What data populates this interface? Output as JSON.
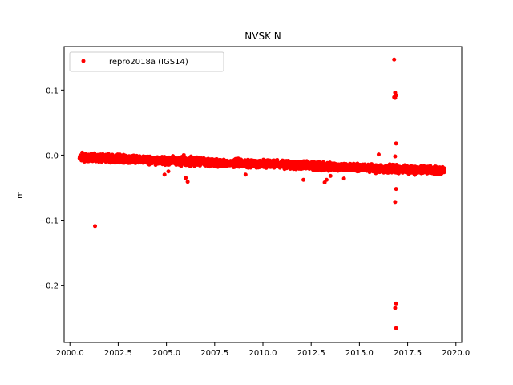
{
  "chart_data": {
    "type": "scatter",
    "title": "NVSK N",
    "xlabel": "",
    "ylabel": "m",
    "xlim": [
      1999.7,
      2020.3
    ],
    "ylim": [
      -0.288,
      0.167
    ],
    "xticks": [
      2000.0,
      2002.5,
      2005.0,
      2007.5,
      2010.0,
      2012.5,
      2015.0,
      2017.5,
      2020.0
    ],
    "xtick_labels": [
      "2000.0",
      "2002.5",
      "2005.0",
      "2007.5",
      "2010.0",
      "2012.5",
      "2015.0",
      "2017.5",
      "2020.0"
    ],
    "yticks": [
      0.1,
      0.0,
      -0.1,
      -0.2
    ],
    "ytick_labels": [
      "0.1",
      "0.0",
      "−0.1",
      "−0.2"
    ],
    "grid": false,
    "legend_position": "upper-left",
    "series": [
      {
        "name": "repro2018a (IGS14)",
        "color": "#ff0000",
        "marker": "circle",
        "trend": {
          "x": [
            2000.5,
            2003.0,
            2005.5,
            2008.0,
            2010.5,
            2013.0,
            2015.5,
            2017.5,
            2019.4
          ],
          "y": [
            -0.003,
            -0.006,
            -0.009,
            -0.012,
            -0.014,
            -0.017,
            -0.02,
            -0.022,
            -0.024
          ]
        },
        "x": [
          2001.3,
          2004.9,
          2005.1,
          2005.9,
          2006.0,
          2006.1,
          2009.1,
          2012.1,
          2013.2,
          2013.3,
          2013.5,
          2014.2,
          2016.0,
          2016.8,
          2016.85,
          2016.9,
          2016.8,
          2016.85,
          2016.9,
          2016.85,
          2016.9,
          2016.85,
          2016.9,
          2016.85,
          2016.9,
          2016.85
        ],
        "y": [
          -0.109,
          -0.03,
          -0.025,
          0.0,
          -0.035,
          -0.041,
          -0.03,
          -0.038,
          -0.042,
          -0.038,
          -0.032,
          -0.036,
          0.001,
          0.147,
          0.096,
          0.092,
          0.089,
          0.088,
          0.018,
          -0.002,
          -0.052,
          -0.072,
          -0.228,
          -0.235,
          -0.266,
          -0.018
        ]
      }
    ]
  }
}
